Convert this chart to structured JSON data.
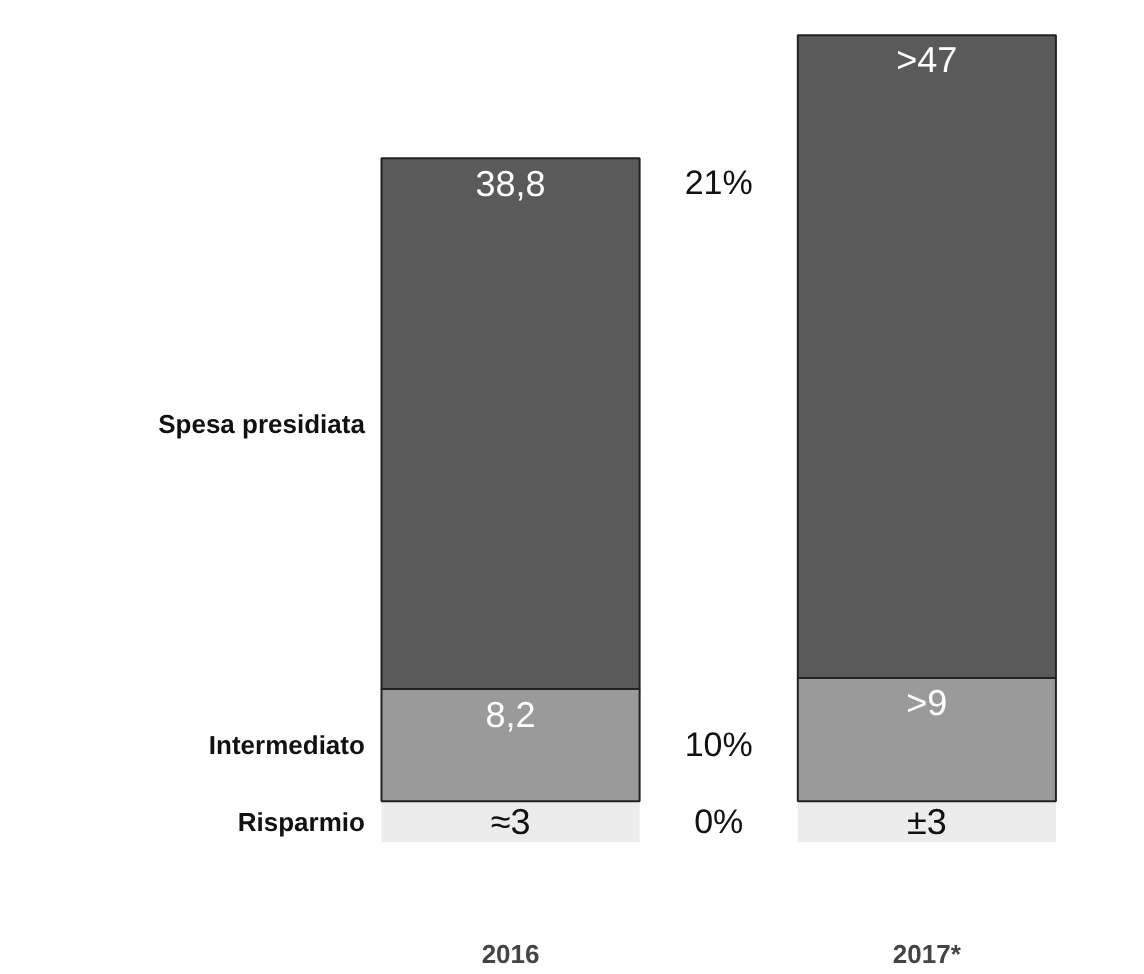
{
  "chart_data": {
    "type": "bar",
    "stacked": true,
    "categories": [
      "2016",
      "2017*"
    ],
    "series": [
      {
        "name": "Risparmio",
        "color": "#ececec",
        "values": [
          3,
          3
        ],
        "value_labels": [
          "≈3",
          "±3"
        ]
      },
      {
        "name": "Intermediato",
        "color": "#9a9a9a",
        "values": [
          8.2,
          9
        ],
        "value_labels": [
          "8,2",
          ">9"
        ]
      },
      {
        "name": "Spesa presidiata",
        "color": "#5a5a5a",
        "values": [
          38.8,
          47
        ],
        "value_labels": [
          "38,8",
          ">47"
        ]
      }
    ],
    "annotations": [
      "21%",
      "10%",
      "0%"
    ],
    "tick_labels": "x",
    "grid": false,
    "legend": false
  }
}
